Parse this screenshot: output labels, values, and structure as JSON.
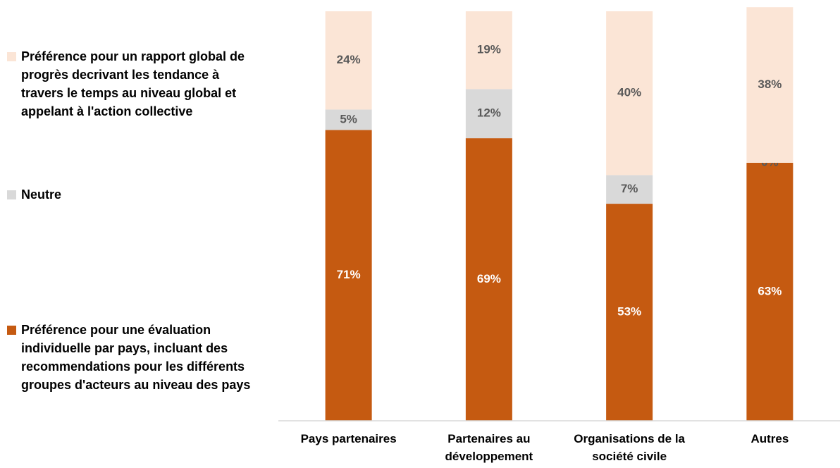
{
  "chart_data": {
    "type": "stacked_bar",
    "categories": [
      "Pays partenaires",
      "Partenaires au développement",
      "Organisations de la société civile",
      "Autres"
    ],
    "series": [
      {
        "name": "Préférence pour une évaluation individuelle par pays, incluant des recommendations pour les différents groupes d'acteurs au niveau des pays",
        "color": "#c55a11",
        "values": [
          71,
          69,
          53,
          63
        ],
        "value_labels": [
          "71%",
          "69%",
          "53%",
          "63%"
        ]
      },
      {
        "name": "Neutre",
        "color": "#d9d9d9",
        "values": [
          5,
          12,
          7,
          0
        ],
        "value_labels": [
          "5%",
          "12%",
          "7%",
          "0%"
        ]
      },
      {
        "name": "Préférence pour un rapport global de progrès decrivant les tendance à travers le temps au niveau global et appelant à l'action collective",
        "color": "#fbe5d6",
        "values": [
          24,
          19,
          40,
          38
        ],
        "value_labels": [
          "24%",
          "19%",
          "40%",
          "38%"
        ]
      }
    ],
    "ylim": [
      0,
      100
    ],
    "legend": "left"
  }
}
